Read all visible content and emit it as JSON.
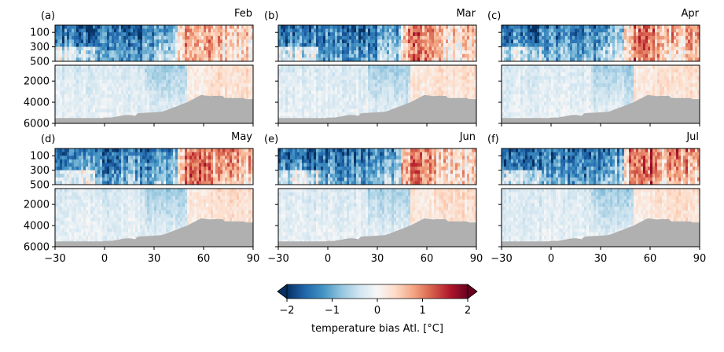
{
  "figure": {
    "colorbar": {
      "label": "temperature bias Atl. [$^o$C]",
      "label_display": "temperature bias Atl. [°C]",
      "ticks": [
        -2,
        -1,
        0,
        1,
        2
      ],
      "tick_labels": [
        "−2",
        "−1",
        "0",
        "1",
        "2"
      ],
      "vmin": -2,
      "vmax": 2,
      "colormap": "RdBu_r",
      "colormap_stops": [
        "#053061",
        "#2166ac",
        "#4393c3",
        "#92c5de",
        "#d1e5f0",
        "#f7f7f7",
        "#fddbc7",
        "#f4a582",
        "#d6604d",
        "#b2182b",
        "#67001f"
      ],
      "extend": "both"
    },
    "bathymetry_color": "#b0b0b0"
  },
  "chart_data": [
    {
      "type": "heatmap",
      "panel_label": "(a)",
      "month": "Feb",
      "x_ticks": [
        -30,
        0,
        30,
        60,
        90
      ],
      "x_tick_labels": [
        "−30",
        "0",
        "30",
        "60",
        "90"
      ],
      "upper_y_ticks": [
        100,
        300,
        500
      ],
      "upper_y_tick_labels": [
        "100",
        "300",
        "500"
      ],
      "lower_y_ticks": [
        2000,
        4000,
        6000
      ],
      "lower_y_tick_labels": [
        "2000",
        "4000",
        "6000"
      ],
      "xlim": [
        -30,
        90
      ],
      "upper_ylim": [
        500,
        0
      ],
      "lower_ylim": [
        6000,
        500
      ],
      "bias": {
        "upper_west": -1.6,
        "upper_mid": -1.1,
        "upper_front": 0.9,
        "upper_east": 0.6,
        "deep_west": -0.3,
        "deep_mid": -0.6,
        "deep_front": 0.2,
        "deep_east": 0.35
      },
      "show_xticklabels": false,
      "show_yticklabels": true
    },
    {
      "type": "heatmap",
      "panel_label": "(b)",
      "month": "Mar",
      "x_ticks": [
        -30,
        0,
        30,
        60,
        90
      ],
      "x_tick_labels": [
        "−30",
        "0",
        "30",
        "60",
        "90"
      ],
      "upper_y_ticks": [
        100,
        300,
        500
      ],
      "upper_y_tick_labels": [
        "100",
        "300",
        "500"
      ],
      "lower_y_ticks": [
        2000,
        4000,
        6000
      ],
      "lower_y_tick_labels": [
        "2000",
        "4000",
        "6000"
      ],
      "xlim": [
        -30,
        90
      ],
      "upper_ylim": [
        500,
        0
      ],
      "lower_ylim": [
        6000,
        500
      ],
      "bias": {
        "upper_west": -1.6,
        "upper_mid": -1.2,
        "upper_front": 1.0,
        "upper_east": 0.5,
        "deep_west": -0.3,
        "deep_mid": -0.6,
        "deep_front": 0.2,
        "deep_east": 0.35
      },
      "show_xticklabels": false,
      "show_yticklabels": false
    },
    {
      "type": "heatmap",
      "panel_label": "(c)",
      "month": "Apr",
      "x_ticks": [
        -30,
        0,
        30,
        60,
        90
      ],
      "x_tick_labels": [
        "−30",
        "0",
        "30",
        "60",
        "90"
      ],
      "upper_y_ticks": [
        100,
        300,
        500
      ],
      "upper_y_tick_labels": [
        "100",
        "300",
        "500"
      ],
      "lower_y_ticks": [
        2000,
        4000,
        6000
      ],
      "lower_y_tick_labels": [
        "2000",
        "4000",
        "6000"
      ],
      "xlim": [
        -30,
        90
      ],
      "upper_ylim": [
        500,
        0
      ],
      "lower_ylim": [
        6000,
        500
      ],
      "bias": {
        "upper_west": -1.5,
        "upper_mid": -1.2,
        "upper_front": 1.1,
        "upper_east": 0.8,
        "deep_west": -0.3,
        "deep_mid": -0.6,
        "deep_front": 0.2,
        "deep_east": 0.35
      },
      "show_xticklabels": false,
      "show_yticklabels": false
    },
    {
      "type": "heatmap",
      "panel_label": "(d)",
      "month": "May",
      "x_ticks": [
        -30,
        0,
        30,
        60,
        90
      ],
      "x_tick_labels": [
        "−30",
        "0",
        "30",
        "60",
        "90"
      ],
      "upper_y_ticks": [
        100,
        300,
        500
      ],
      "upper_y_tick_labels": [
        "100",
        "300",
        "500"
      ],
      "lower_y_ticks": [
        2000,
        4000,
        6000
      ],
      "lower_y_tick_labels": [
        "2000",
        "4000",
        "6000"
      ],
      "xlim": [
        -30,
        90
      ],
      "upper_ylim": [
        500,
        0
      ],
      "lower_ylim": [
        6000,
        500
      ],
      "bias": {
        "upper_west": -1.5,
        "upper_mid": -1.3,
        "upper_front": 1.2,
        "upper_east": 0.9,
        "deep_west": -0.3,
        "deep_mid": -0.6,
        "deep_front": 0.2,
        "deep_east": 0.35
      },
      "show_xticklabels": true,
      "show_yticklabels": true
    },
    {
      "type": "heatmap",
      "panel_label": "(e)",
      "month": "Jun",
      "x_ticks": [
        -30,
        0,
        30,
        60,
        90
      ],
      "x_tick_labels": [
        "−30",
        "0",
        "30",
        "60",
        "90"
      ],
      "upper_y_ticks": [
        100,
        300,
        500
      ],
      "upper_y_tick_labels": [
        "100",
        "300",
        "500"
      ],
      "lower_y_ticks": [
        2000,
        4000,
        6000
      ],
      "lower_y_tick_labels": [
        "2000",
        "4000",
        "6000"
      ],
      "xlim": [
        -30,
        90
      ],
      "upper_ylim": [
        500,
        0
      ],
      "lower_ylim": [
        6000,
        500
      ],
      "bias": {
        "upper_west": -1.6,
        "upper_mid": -1.3,
        "upper_front": 1.1,
        "upper_east": 0.4,
        "deep_west": -0.3,
        "deep_mid": -0.6,
        "deep_front": 0.2,
        "deep_east": 0.35
      },
      "show_xticklabels": true,
      "show_yticklabels": false
    },
    {
      "type": "heatmap",
      "panel_label": "(f)",
      "month": "Jul",
      "x_ticks": [
        -30,
        0,
        30,
        60,
        90
      ],
      "x_tick_labels": [
        "−30",
        "0",
        "30",
        "60",
        "90"
      ],
      "upper_y_ticks": [
        100,
        300,
        500
      ],
      "upper_y_tick_labels": [
        "100",
        "300",
        "500"
      ],
      "lower_y_ticks": [
        2000,
        4000,
        6000
      ],
      "lower_y_tick_labels": [
        "2000",
        "4000",
        "6000"
      ],
      "xlim": [
        -30,
        90
      ],
      "upper_ylim": [
        500,
        0
      ],
      "lower_ylim": [
        6000,
        500
      ],
      "bias": {
        "upper_west": -1.6,
        "upper_mid": -1.3,
        "upper_front": 1.3,
        "upper_east": 1.0,
        "deep_west": -0.3,
        "deep_mid": -0.6,
        "deep_front": 0.2,
        "deep_east": 0.35
      },
      "show_xticklabels": true,
      "show_yticklabels": false
    }
  ]
}
